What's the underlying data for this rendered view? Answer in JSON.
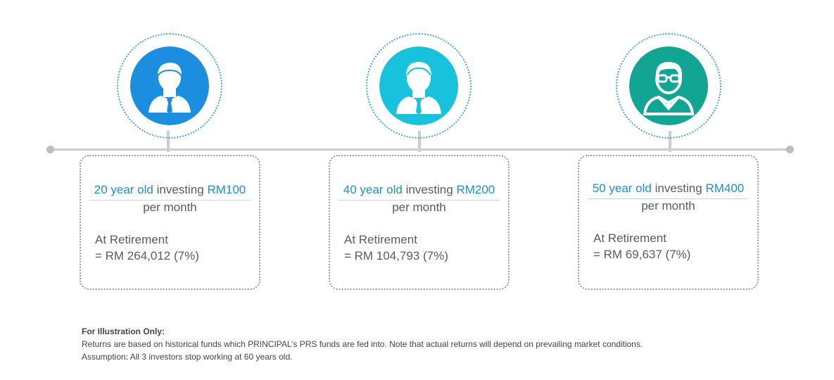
{
  "colors": {
    "accent_blue": "#1e8fc6",
    "person1_bg": "#1b8ee0",
    "person2_bg": "#19c2dc",
    "person3_bg": "#12a594",
    "timeline": "#cdcdcd"
  },
  "investors": [
    {
      "icon": "businessman-icon",
      "age_text": "20 year old",
      "investing_text": "investing",
      "amount": "RM100",
      "period": "per month",
      "retirement_label": "At Retirement",
      "retirement_value": "= RM 264,012 (7%)"
    },
    {
      "icon": "businessman-icon",
      "age_text": "40 year old",
      "investing_text": "investing",
      "amount": "RM200",
      "period": "per month",
      "retirement_label": "At Retirement",
      "retirement_value": "= RM 104,793 (7%)"
    },
    {
      "icon": "man-with-glasses-icon",
      "age_text": "50 year old",
      "investing_text": "investing",
      "amount": "RM400",
      "period": "per month",
      "retirement_label": "At Retirement",
      "retirement_value": "= RM 69,637 (7%)"
    }
  ],
  "footnote": {
    "title": "For Illustration Only:",
    "line1": "Returns are based on historical funds which PRINCIPAL’s PRS funds are fed into. Note that actual returns will depend on prevailing market conditions.",
    "line2": "Assumption: All 3 investors stop working at 60 years old."
  }
}
